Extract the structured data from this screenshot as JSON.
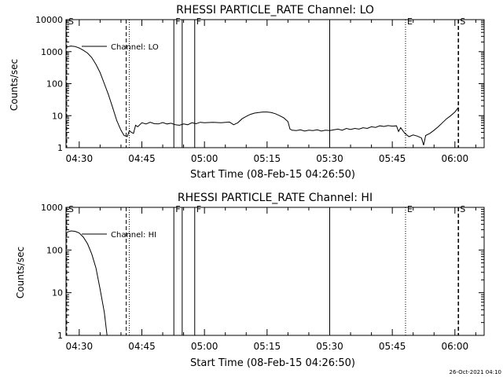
{
  "footer_date": "26-Oct-2021 04:10",
  "colors": {
    "line": "#000000",
    "background": "#ffffff"
  },
  "chart_data": [
    {
      "type": "line",
      "title": "RHESSI PARTICLE_RATE Channel: LO",
      "xlabel": "Start Time (08-Feb-15 04:26:50)",
      "ylabel": "Counts/sec",
      "yscale": "log",
      "xlim": [
        "04:26:50",
        "06:07:00"
      ],
      "ylim": [
        1,
        10000
      ],
      "x_ticks": [
        "04:30",
        "04:45",
        "05:00",
        "05:15",
        "05:30",
        "05:45",
        "06:00"
      ],
      "y_ticks": [
        "1",
        "10",
        "100",
        "1000",
        "10000"
      ],
      "legend": "Channel: LO",
      "markers": [
        {
          "label": "S",
          "time": "04:27:00",
          "style": "dashed"
        },
        {
          "label": "",
          "time": "04:41:15",
          "style": "dashed"
        },
        {
          "label": "",
          "time": "04:42:00",
          "style": "dotted"
        },
        {
          "label": "F",
          "time": "04:52:40",
          "style": "solid"
        },
        {
          "label": "",
          "time": "04:54:40",
          "style": "solid"
        },
        {
          "label": "F",
          "time": "04:57:40",
          "style": "solid"
        },
        {
          "label": "",
          "time": "05:30:00",
          "style": "solid"
        },
        {
          "label": "E",
          "time": "05:48:10",
          "style": "dotted"
        },
        {
          "label": "S",
          "time": "06:00:50",
          "style": "dashed"
        }
      ],
      "series": [
        {
          "name": "Channel: LO",
          "points": [
            [
              "04:27:00",
              1400
            ],
            [
              "04:28:00",
              1500
            ],
            [
              "04:29:00",
              1450
            ],
            [
              "04:30:00",
              1300
            ],
            [
              "04:31:00",
              1100
            ],
            [
              "04:32:00",
              900
            ],
            [
              "04:33:00",
              650
            ],
            [
              "04:34:00",
              400
            ],
            [
              "04:35:00",
              220
            ],
            [
              "04:36:00",
              100
            ],
            [
              "04:37:00",
              45
            ],
            [
              "04:38:00",
              18
            ],
            [
              "04:39:00",
              7
            ],
            [
              "04:40:00",
              3.5
            ],
            [
              "04:40:45",
              2.4
            ],
            [
              "04:41:30",
              2.2
            ],
            [
              "04:42:00",
              3.4
            ],
            [
              "04:42:30",
              3.0
            ],
            [
              "04:43:00",
              2.8
            ],
            [
              "04:43:30",
              5.0
            ],
            [
              "04:44:00",
              4.5
            ],
            [
              "04:45:00",
              6.0
            ],
            [
              "04:46:00",
              5.5
            ],
            [
              "04:47:00",
              6.2
            ],
            [
              "04:48:00",
              5.6
            ],
            [
              "04:49:00",
              5.5
            ],
            [
              "04:50:00",
              6.1
            ],
            [
              "04:51:00",
              5.5
            ],
            [
              "04:52:00",
              5.8
            ],
            [
              "04:53:00",
              5.2
            ],
            [
              "04:54:00",
              5.0
            ],
            [
              "04:55:00",
              5.5
            ],
            [
              "04:56:00",
              5.2
            ],
            [
              "04:57:00",
              6.0
            ],
            [
              "04:58:00",
              5.6
            ],
            [
              "04:59:00",
              6.2
            ],
            [
              "05:00:00",
              6.0
            ],
            [
              "05:02:00",
              6.2
            ],
            [
              "05:04:00",
              6.0
            ],
            [
              "05:06:00",
              6.3
            ],
            [
              "05:07:00",
              5.2
            ],
            [
              "05:08:00",
              6.0
            ],
            [
              "05:09:00",
              8.0
            ],
            [
              "05:10:00",
              9.5
            ],
            [
              "05:11:00",
              11
            ],
            [
              "05:12:00",
              12
            ],
            [
              "05:13:00",
              12.5
            ],
            [
              "05:14:00",
              13
            ],
            [
              "05:15:00",
              13
            ],
            [
              "05:16:00",
              12.5
            ],
            [
              "05:17:00",
              11.5
            ],
            [
              "05:18:00",
              10
            ],
            [
              "05:19:00",
              8.5
            ],
            [
              "05:20:00",
              6.5
            ],
            [
              "05:20:30",
              3.8
            ],
            [
              "05:21:00",
              3.5
            ],
            [
              "05:22:00",
              3.4
            ],
            [
              "05:23:00",
              3.6
            ],
            [
              "05:24:00",
              3.3
            ],
            [
              "05:25:00",
              3.5
            ],
            [
              "05:26:00",
              3.4
            ],
            [
              "05:27:00",
              3.6
            ],
            [
              "05:28:00",
              3.3
            ],
            [
              "05:29:00",
              3.5
            ],
            [
              "05:30:00",
              3.4
            ],
            [
              "05:31:00",
              3.6
            ],
            [
              "05:32:00",
              3.8
            ],
            [
              "05:33:00",
              3.5
            ],
            [
              "05:34:00",
              4.0
            ],
            [
              "05:35:00",
              3.7
            ],
            [
              "05:36:00",
              4.0
            ],
            [
              "05:37:00",
              3.8
            ],
            [
              "05:38:00",
              4.2
            ],
            [
              "05:39:00",
              4.0
            ],
            [
              "05:40:00",
              4.5
            ],
            [
              "05:41:00",
              4.3
            ],
            [
              "05:42:00",
              4.8
            ],
            [
              "05:43:00",
              4.6
            ],
            [
              "05:44:00",
              4.9
            ],
            [
              "05:45:00",
              4.7
            ],
            [
              "05:46:00",
              4.8
            ],
            [
              "05:46:30",
              3.2
            ],
            [
              "05:47:00",
              4.2
            ],
            [
              "05:48:00",
              2.8
            ],
            [
              "05:49:00",
              2.2
            ],
            [
              "05:50:00",
              2.5
            ],
            [
              "05:51:00",
              2.3
            ],
            [
              "05:52:00",
              2.0
            ],
            [
              "05:52:30",
              1.2
            ],
            [
              "05:53:00",
              2.4
            ],
            [
              "05:54:00",
              2.8
            ],
            [
              "05:55:00",
              3.5
            ],
            [
              "05:56:00",
              4.5
            ],
            [
              "05:57:00",
              6.0
            ],
            [
              "05:58:00",
              8.0
            ],
            [
              "05:59:00",
              10
            ],
            [
              "06:00:00",
              13
            ],
            [
              "06:00:50",
              18
            ]
          ]
        }
      ]
    },
    {
      "type": "line",
      "title": "RHESSI PARTICLE_RATE Channel: HI",
      "xlabel": "Start Time (08-Feb-15 04:26:50)",
      "ylabel": "Counts/sec",
      "yscale": "log",
      "xlim": [
        "04:26:50",
        "06:07:00"
      ],
      "ylim": [
        1,
        1000
      ],
      "x_ticks": [
        "04:30",
        "04:45",
        "05:00",
        "05:15",
        "05:30",
        "05:45",
        "06:00"
      ],
      "y_ticks": [
        "1",
        "10",
        "100",
        "1000"
      ],
      "legend": "Channel: HI",
      "markers": [
        {
          "label": "S",
          "time": "04:27:00",
          "style": "dashed"
        },
        {
          "label": "",
          "time": "04:41:15",
          "style": "dashed"
        },
        {
          "label": "",
          "time": "04:42:00",
          "style": "dotted"
        },
        {
          "label": "F",
          "time": "04:52:40",
          "style": "solid"
        },
        {
          "label": "",
          "time": "04:54:40",
          "style": "solid"
        },
        {
          "label": "F",
          "time": "04:57:40",
          "style": "solid"
        },
        {
          "label": "",
          "time": "05:30:00",
          "style": "solid"
        },
        {
          "label": "E",
          "time": "05:48:10",
          "style": "dotted"
        },
        {
          "label": "S",
          "time": "06:00:50",
          "style": "dashed"
        }
      ],
      "series": [
        {
          "name": "Channel: HI",
          "points": [
            [
              "04:27:00",
              260
            ],
            [
              "04:28:00",
              280
            ],
            [
              "04:29:00",
              275
            ],
            [
              "04:30:00",
              250
            ],
            [
              "04:31:00",
              200
            ],
            [
              "04:32:00",
              140
            ],
            [
              "04:33:00",
              80
            ],
            [
              "04:34:00",
              38
            ],
            [
              "04:35:00",
              12
            ],
            [
              "04:36:00",
              3.5
            ],
            [
              "04:36:40",
              1.0
            ]
          ]
        }
      ]
    }
  ]
}
